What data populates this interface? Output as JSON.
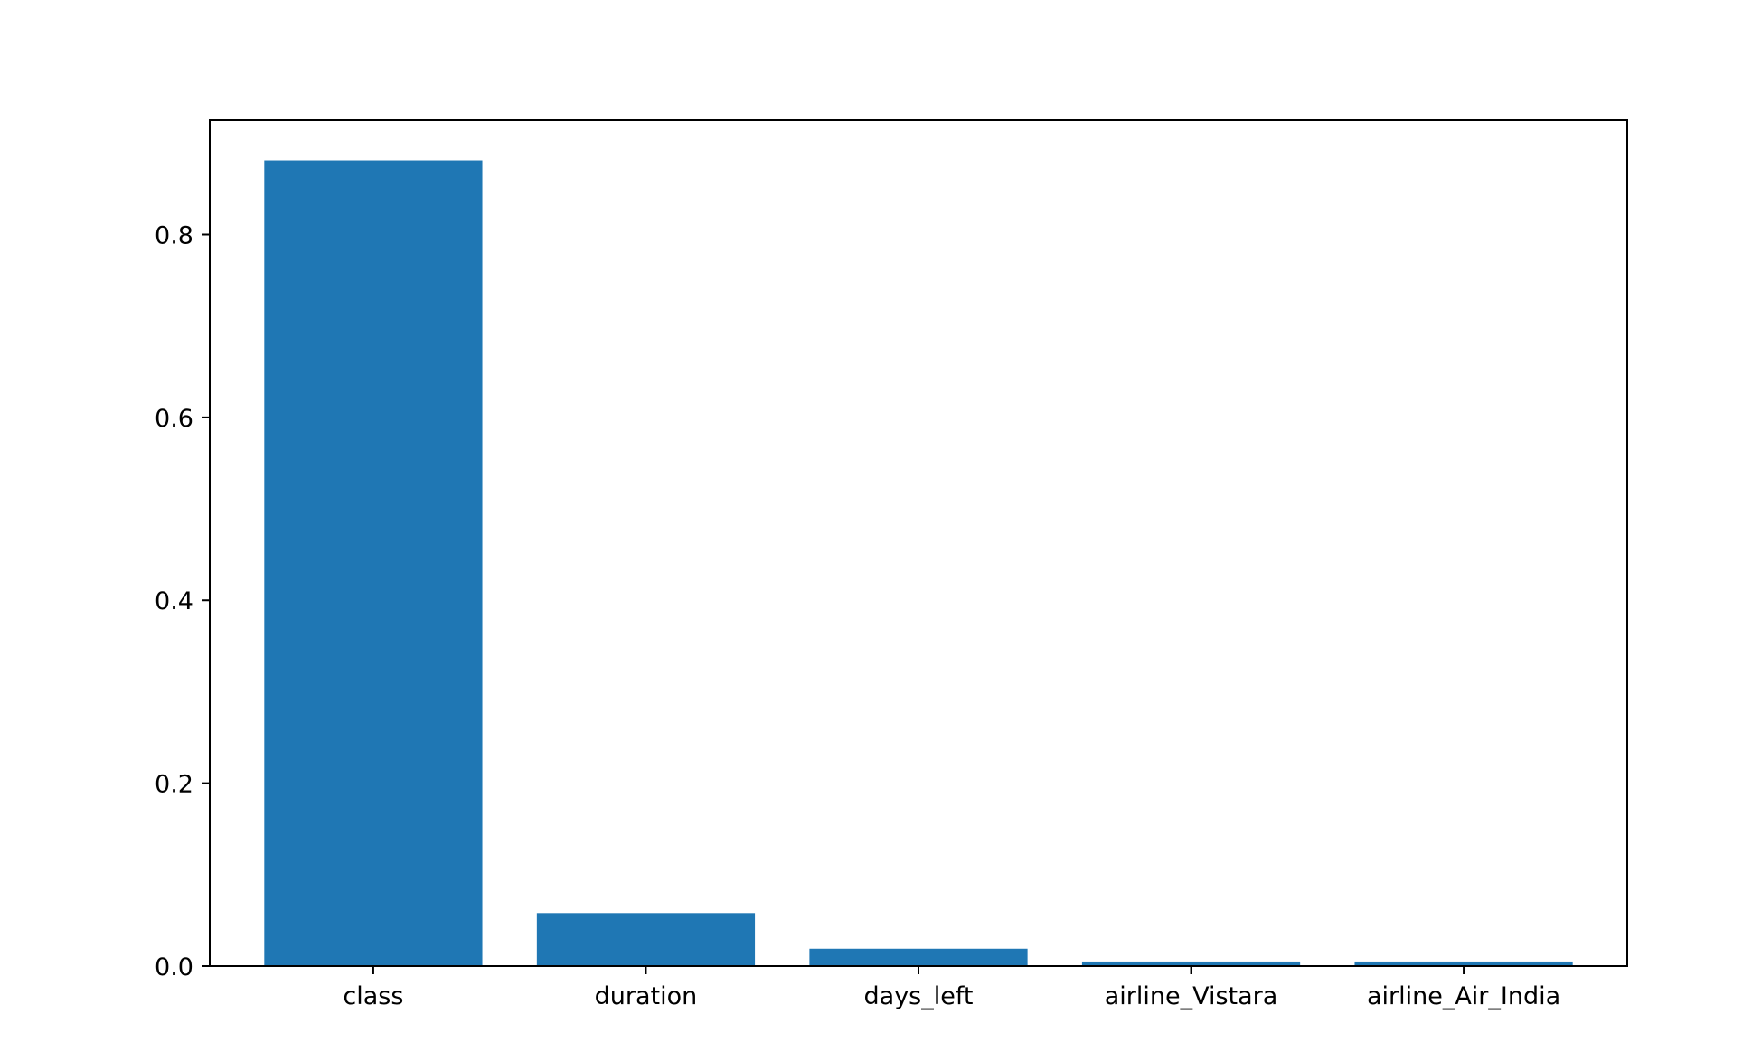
{
  "chart_data": {
    "type": "bar",
    "categories": [
      "class",
      "duration",
      "days_left",
      "airline_Vistara",
      "airline_Air_India"
    ],
    "values": [
      0.881,
      0.058,
      0.019,
      0.005,
      0.005
    ],
    "title": "",
    "xlabel": "",
    "ylabel": "",
    "ylim": [
      0,
      0.925
    ],
    "yticks": [
      0.0,
      0.2,
      0.4,
      0.6,
      0.8
    ],
    "ytick_labels": [
      "0.0",
      "0.2",
      "0.4",
      "0.6",
      "0.8"
    ],
    "grid": false,
    "bar_color": "#1f77b4"
  }
}
